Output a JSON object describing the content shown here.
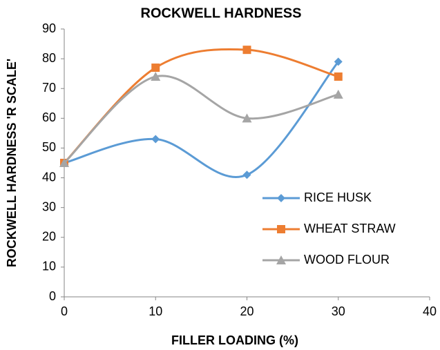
{
  "chart_data": {
    "type": "line",
    "title": "ROCKWELL HARDNESS",
    "x_label": "FILLER LOADING  (%)",
    "y_label": "ROCKWELL HARDNESS 'R SCALE'",
    "x": [
      0,
      10,
      20,
      30
    ],
    "series": [
      {
        "name": "RICE HUSK",
        "color": "#5b9bd5",
        "marker": "diamond",
        "values": [
          45,
          53,
          41,
          79
        ]
      },
      {
        "name": "WHEAT STRAW",
        "color": "#ed7d31",
        "marker": "square",
        "values": [
          45,
          77,
          83,
          74
        ]
      },
      {
        "name": "WOOD FLOUR",
        "color": "#a5a5a5",
        "marker": "triangle",
        "values": [
          45,
          74,
          60,
          68
        ]
      }
    ],
    "xlim": [
      0,
      40
    ],
    "xticks": [
      0,
      10,
      20,
      30,
      40
    ],
    "ylim": [
      0,
      90
    ],
    "yticks": [
      0,
      10,
      20,
      30,
      40,
      50,
      60,
      70,
      80,
      90
    ],
    "smooth": true,
    "grid": false,
    "legend": "right"
  }
}
